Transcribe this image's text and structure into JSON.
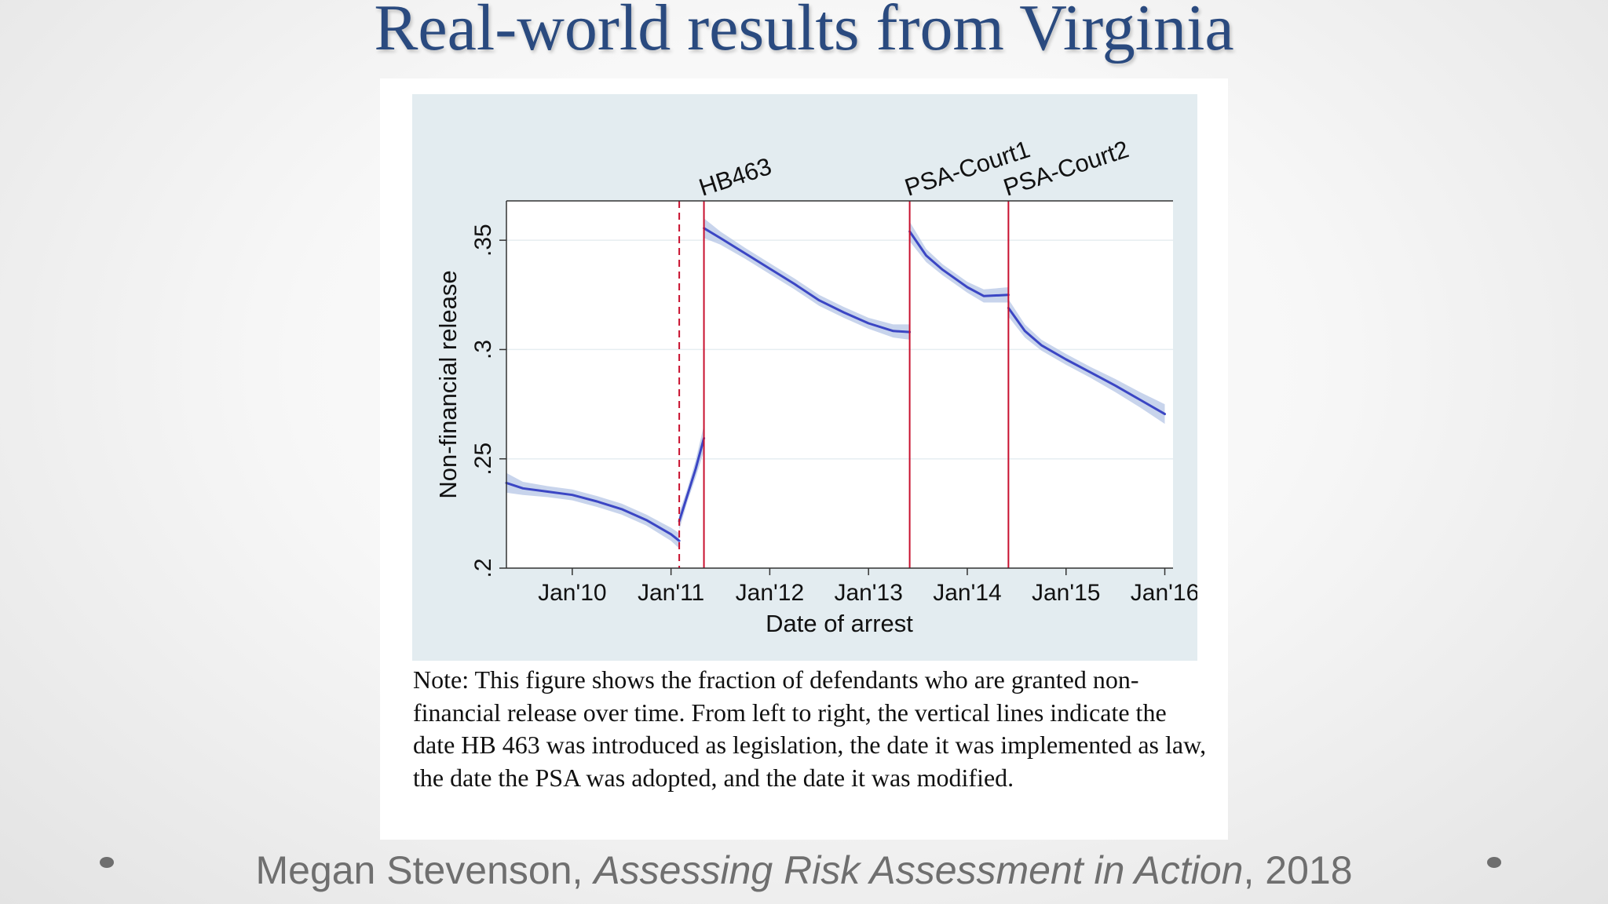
{
  "slide": {
    "title": "Real-world results from Virginia",
    "citation": {
      "author": "Megan Stevenson, ",
      "work": "Assessing Risk Assessment in Action",
      "year": ", 2018"
    },
    "note": "Note: This figure shows the fraction of defendants who are granted non-financial release over time. From left to right, the vertical lines indicate the date HB 463 was introduced as legislation, the date it was implemented as law, the date the PSA was adopted, and the date it was modified."
  },
  "colors": {
    "title": "#2a4a7f",
    "plot_region": "#e3ecf0",
    "series_line": "#3b46c4",
    "confidence_band": "#b5c6e6",
    "event_line": "#c8102e"
  },
  "chart_data": {
    "type": "line",
    "xlabel": "Date of arrest",
    "ylabel": "Non-financial release",
    "xlim": [
      "2009-05",
      "2016-02"
    ],
    "ylim": [
      0.2,
      0.368
    ],
    "x_ticks": [
      {
        "value": "2010-01",
        "label": "Jan'10"
      },
      {
        "value": "2011-01",
        "label": "Jan'11"
      },
      {
        "value": "2012-01",
        "label": "Jan'12"
      },
      {
        "value": "2013-01",
        "label": "Jan'13"
      },
      {
        "value": "2014-01",
        "label": "Jan'14"
      },
      {
        "value": "2015-01",
        "label": "Jan'15"
      },
      {
        "value": "2016-01",
        "label": "Jan'16"
      }
    ],
    "y_ticks": [
      {
        "value": 0.2,
        "label": ".2"
      },
      {
        "value": 0.25,
        "label": ".25"
      },
      {
        "value": 0.3,
        "label": ".3"
      },
      {
        "value": 0.35,
        "label": ".35"
      }
    ],
    "grid": true,
    "event_lines": [
      {
        "x": "2011-02",
        "label": "",
        "style": "dashed"
      },
      {
        "x": "2011-05",
        "label": "HB463",
        "style": "solid"
      },
      {
        "x": "2013-06",
        "label": "PSA-Court1",
        "style": "solid"
      },
      {
        "x": "2014-06",
        "label": "PSA-Court2",
        "style": "solid"
      }
    ],
    "series": [
      {
        "segments": [
          {
            "x": [
              "2009-05",
              "2009-07",
              "2009-10",
              "2010-01",
              "2010-04",
              "2010-07",
              "2010-10",
              "2011-01",
              "2011-02"
            ],
            "y": [
              0.239,
              0.2365,
              0.235,
              0.2335,
              0.2305,
              0.227,
              0.222,
              0.2155,
              0.2125
            ],
            "ci_halfwidth": [
              0.0045,
              0.003,
              0.0025,
              0.0025,
              0.0025,
              0.0025,
              0.0025,
              0.003,
              0.0035
            ]
          },
          {
            "x": [
              "2011-02",
              "2011-03",
              "2011-04",
              "2011-05"
            ],
            "y": [
              0.2215,
              0.2335,
              0.2455,
              0.2595
            ],
            "ci_halfwidth": [
              0.004,
              0.003,
              0.004,
              0.006
            ]
          },
          {
            "x": [
              "2011-05",
              "2011-07",
              "2011-10",
              "2012-01",
              "2012-04",
              "2012-07",
              "2012-10",
              "2013-01",
              "2013-04",
              "2013-06"
            ],
            "y": [
              0.3555,
              0.351,
              0.344,
              0.337,
              0.33,
              0.3225,
              0.317,
              0.312,
              0.3085,
              0.308
            ],
            "ci_halfwidth": [
              0.0045,
              0.003,
              0.0025,
              0.0025,
              0.0025,
              0.0025,
              0.0025,
              0.0025,
              0.003,
              0.0035
            ]
          },
          {
            "x": [
              "2013-06",
              "2013-08",
              "2013-10",
              "2014-01",
              "2014-03",
              "2014-06"
            ],
            "y": [
              0.354,
              0.343,
              0.3365,
              0.3285,
              0.3245,
              0.325
            ],
            "ci_halfwidth": [
              0.0045,
              0.003,
              0.0025,
              0.0025,
              0.003,
              0.0035
            ]
          },
          {
            "x": [
              "2014-06",
              "2014-08",
              "2014-10",
              "2015-01",
              "2015-04",
              "2015-07",
              "2015-10",
              "2016-01"
            ],
            "y": [
              0.319,
              0.3085,
              0.302,
              0.2955,
              0.2895,
              0.2835,
              0.277,
              0.2705
            ],
            "ci_halfwidth": [
              0.004,
              0.003,
              0.0025,
              0.0025,
              0.0025,
              0.003,
              0.0035,
              0.0045
            ]
          }
        ]
      }
    ]
  }
}
